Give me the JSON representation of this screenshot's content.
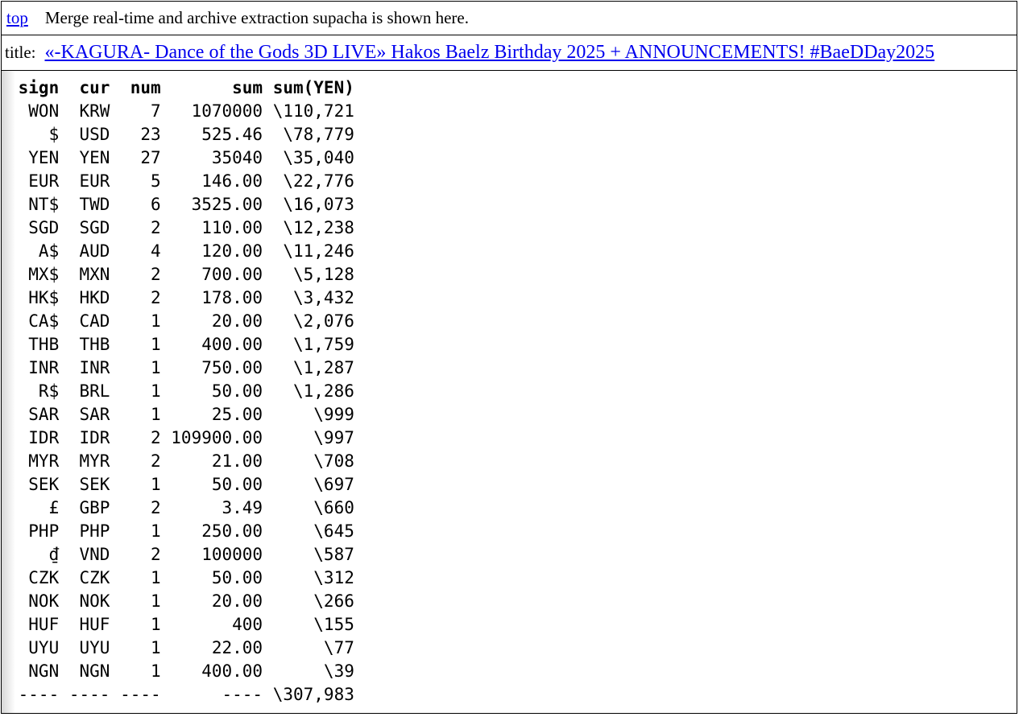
{
  "page": {
    "background": "#ffffff",
    "border_color": "#000000",
    "link_color": "#0000ee"
  },
  "topbar": {
    "link_label": "top",
    "description": "Merge real-time and archive extraction supacha is shown here."
  },
  "titlebar": {
    "label": "title:",
    "video_title": "«-KAGURA- Dance of the Gods 3D LIVE» Hakos Baelz Birthday 2025 + ANNOUNCEMENTS! #BaeDDay2025"
  },
  "table": {
    "headers": [
      "sign",
      "cur",
      "num",
      "sum",
      "sum(YEN)"
    ],
    "rows": [
      [
        "WON",
        "KRW",
        "7",
        "1070000",
        "\\110,721"
      ],
      [
        "$",
        "USD",
        "23",
        "525.46",
        "\\78,779"
      ],
      [
        "YEN",
        "YEN",
        "27",
        "35040",
        "\\35,040"
      ],
      [
        "EUR",
        "EUR",
        "5",
        "146.00",
        "\\22,776"
      ],
      [
        "NT$",
        "TWD",
        "6",
        "3525.00",
        "\\16,073"
      ],
      [
        "SGD",
        "SGD",
        "2",
        "110.00",
        "\\12,238"
      ],
      [
        "A$",
        "AUD",
        "4",
        "120.00",
        "\\11,246"
      ],
      [
        "MX$",
        "MXN",
        "2",
        "700.00",
        "\\5,128"
      ],
      [
        "HK$",
        "HKD",
        "2",
        "178.00",
        "\\3,432"
      ],
      [
        "CA$",
        "CAD",
        "1",
        "20.00",
        "\\2,076"
      ],
      [
        "THB",
        "THB",
        "1",
        "400.00",
        "\\1,759"
      ],
      [
        "INR",
        "INR",
        "1",
        "750.00",
        "\\1,287"
      ],
      [
        "R$",
        "BRL",
        "1",
        "50.00",
        "\\1,286"
      ],
      [
        "SAR",
        "SAR",
        "1",
        "25.00",
        "\\999"
      ],
      [
        "IDR",
        "IDR",
        "2",
        "109900.00",
        "\\997"
      ],
      [
        "MYR",
        "MYR",
        "2",
        "21.00",
        "\\708"
      ],
      [
        "SEK",
        "SEK",
        "1",
        "50.00",
        "\\697"
      ],
      [
        "£",
        "GBP",
        "2",
        "3.49",
        "\\660"
      ],
      [
        "PHP",
        "PHP",
        "1",
        "250.00",
        "\\645"
      ],
      [
        "₫",
        "VND",
        "2",
        "100000",
        "\\587"
      ],
      [
        "CZK",
        "CZK",
        "1",
        "50.00",
        "\\312"
      ],
      [
        "NOK",
        "NOK",
        "1",
        "20.00",
        "\\266"
      ],
      [
        "HUF",
        "HUF",
        "1",
        "400",
        "\\155"
      ],
      [
        "UYU",
        "UYU",
        "1",
        "22.00",
        "\\77"
      ],
      [
        "NGN",
        "NGN",
        "1",
        "400.00",
        "\\39"
      ]
    ],
    "total_row": [
      "----",
      "----",
      "----",
      "----",
      "\\307,983"
    ],
    "total_yen": "\\307,983"
  }
}
